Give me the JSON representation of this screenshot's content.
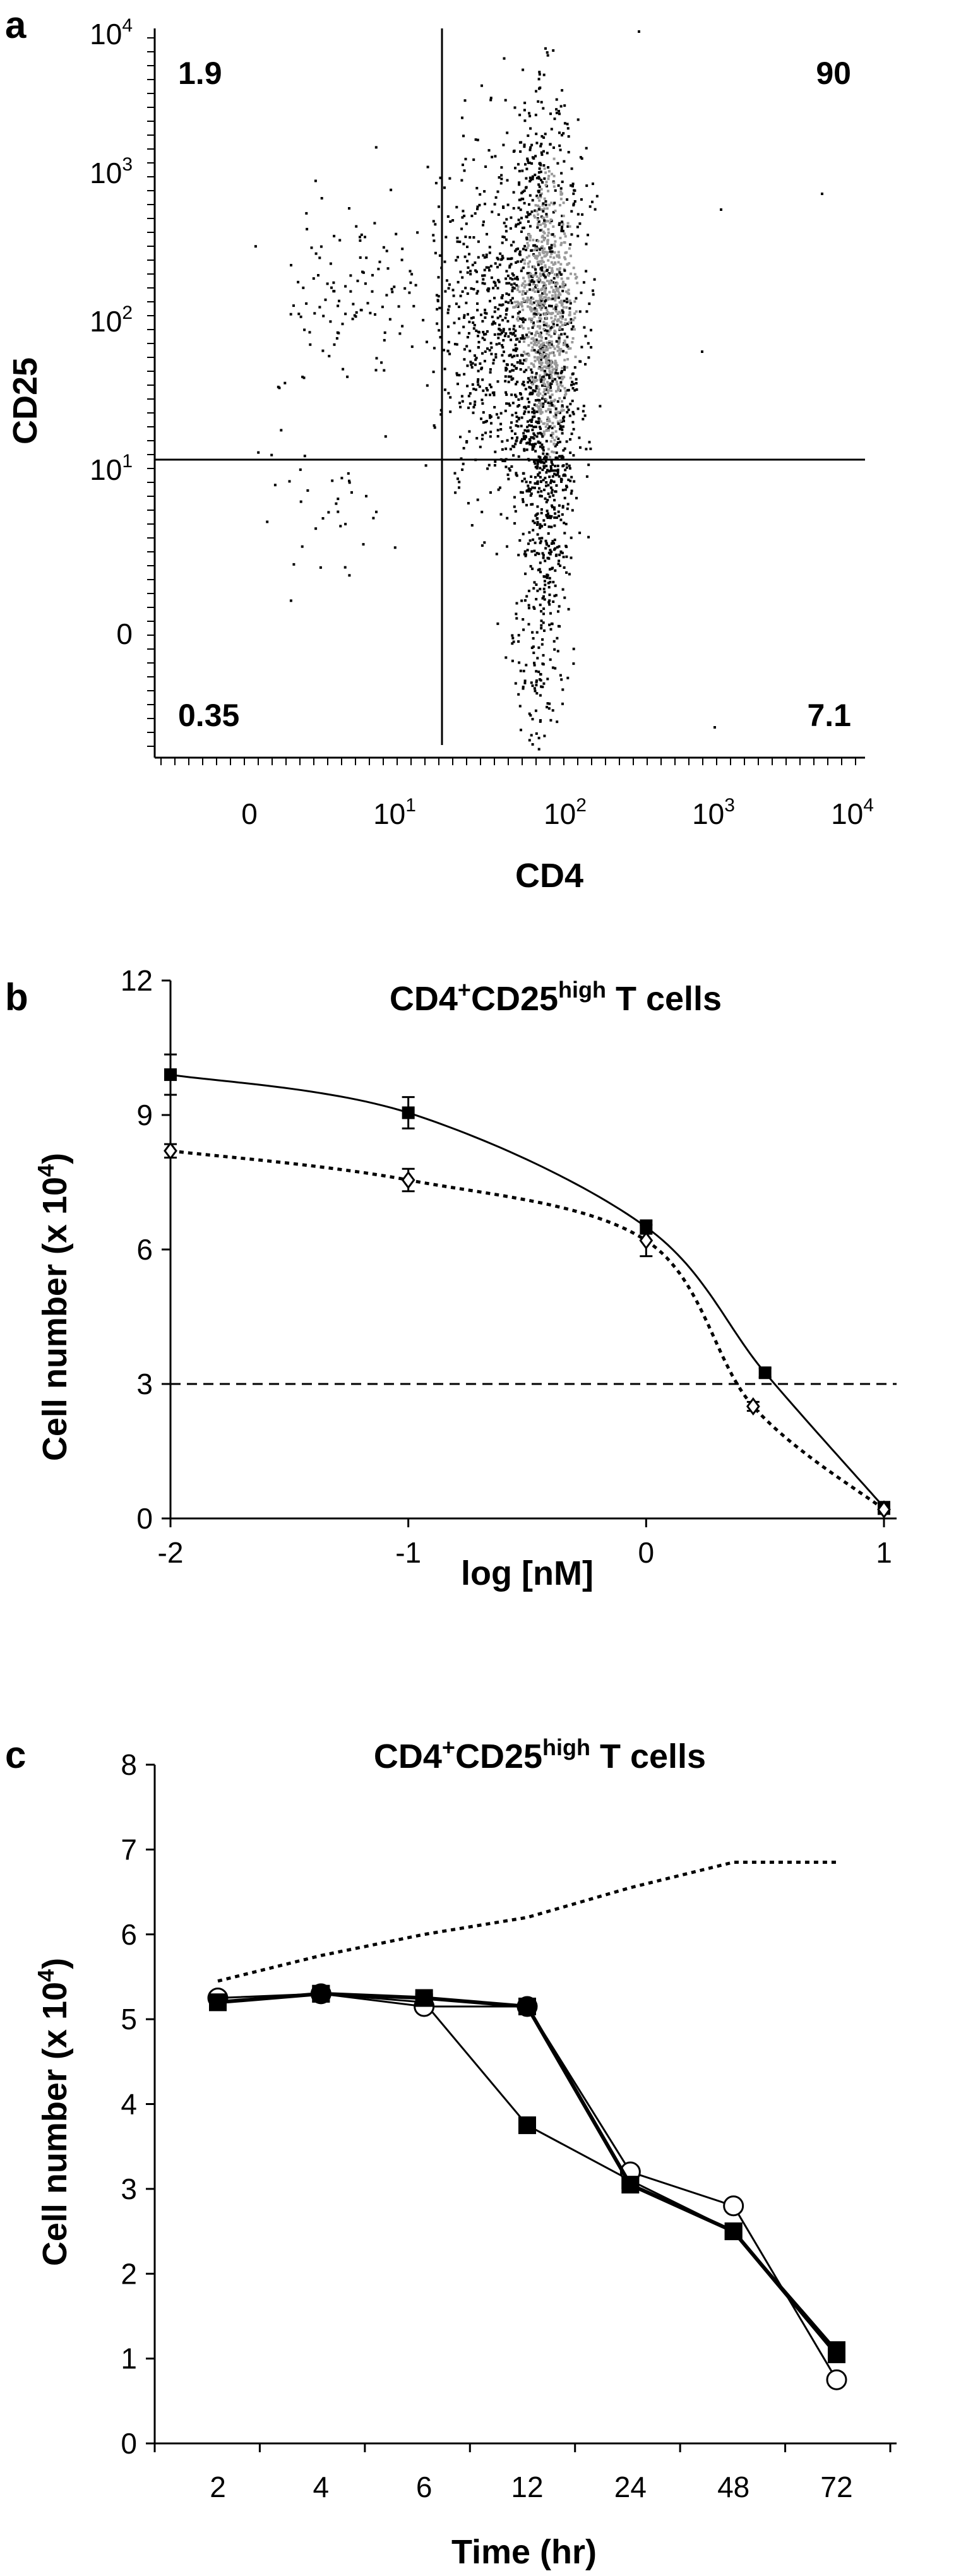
{
  "chart_data": [
    {
      "panel": "a",
      "type": "scatter",
      "xlabel": "CD4",
      "ylabel": "CD25",
      "x_ticks": [
        {
          "base": "0",
          "exp": ""
        },
        {
          "base": "10",
          "exp": "1"
        },
        {
          "base": "10",
          "exp": "2"
        },
        {
          "base": "10",
          "exp": "3"
        },
        {
          "base": "10",
          "exp": "4"
        }
      ],
      "y_ticks": [
        {
          "base": "0",
          "exp": ""
        },
        {
          "base": "10",
          "exp": "1"
        },
        {
          "base": "10",
          "exp": "2"
        },
        {
          "base": "10",
          "exp": "3"
        },
        {
          "base": "10",
          "exp": "4"
        }
      ],
      "scale": "log",
      "gate": {
        "x": 10,
        "y": 10
      },
      "quadrants": {
        "upper_left": "1.9",
        "upper_right": "90",
        "lower_left": "0.35",
        "lower_right": "7.1"
      }
    },
    {
      "panel": "b",
      "type": "line",
      "title": {
        "main": "CD4",
        "sup1": "+",
        "mid": "CD25",
        "sup2": "high",
        "end": " T cells"
      },
      "xlabel": "log [nM]",
      "ylabel": {
        "main": "Cell number (x 10",
        "sup": "4",
        "end": ")"
      },
      "xlim": [
        -2,
        1
      ],
      "ylim": [
        0,
        12
      ],
      "x_ticks": [
        "-2",
        "-1",
        "0",
        "1"
      ],
      "y_ticks": [
        "0",
        "3",
        "6",
        "9",
        "12"
      ],
      "reference_line_y": 3,
      "series": [
        {
          "marker": "filled-square",
          "line": "solid",
          "x": [
            -2,
            -1,
            0,
            0.5,
            1
          ],
          "y": [
            9.9,
            9.05,
            6.5,
            3.25,
            0.25
          ],
          "err": [
            0.45,
            0.35,
            0.15,
            0.1,
            0.1
          ]
        },
        {
          "marker": "open-diamond",
          "line": "dotted",
          "x": [
            -2,
            -1,
            0,
            0.45,
            1
          ],
          "y": [
            8.2,
            7.55,
            6.2,
            2.5,
            0.2
          ],
          "err": [
            0.15,
            0.25,
            0.35,
            0.1,
            0.1
          ]
        }
      ]
    },
    {
      "panel": "c",
      "type": "line",
      "title": {
        "main": "CD4",
        "sup1": "+",
        "mid": "CD25",
        "sup2": "high",
        "end": " T cells"
      },
      "xlabel": "Time (hr)",
      "ylabel": {
        "main": "Cell number (x 10",
        "sup": "4",
        "end": ")"
      },
      "categories": [
        "2",
        "4",
        "6",
        "12",
        "24",
        "48",
        "72"
      ],
      "ylim": [
        0,
        8
      ],
      "y_ticks": [
        "0",
        "1",
        "2",
        "3",
        "4",
        "5",
        "6",
        "7",
        "8"
      ],
      "series": [
        {
          "marker": "none",
          "line": "dotted",
          "y": [
            5.45,
            5.75,
            6.0,
            6.2,
            6.55,
            6.85,
            6.85
          ]
        },
        {
          "marker": "filled-square",
          "line": "solid-thin",
          "y": [
            5.2,
            5.3,
            5.2,
            3.75,
            3.1,
            2.5,
            1.1
          ]
        },
        {
          "marker": "open-circle",
          "line": "solid-thin",
          "y": [
            5.25,
            5.3,
            5.15,
            5.15,
            3.2,
            2.8,
            0.75
          ]
        },
        {
          "marker": "filled-square",
          "line": "solid-thick",
          "y": [
            5.2,
            5.3,
            5.25,
            5.15,
            3.05,
            2.5,
            1.05
          ]
        }
      ]
    }
  ]
}
